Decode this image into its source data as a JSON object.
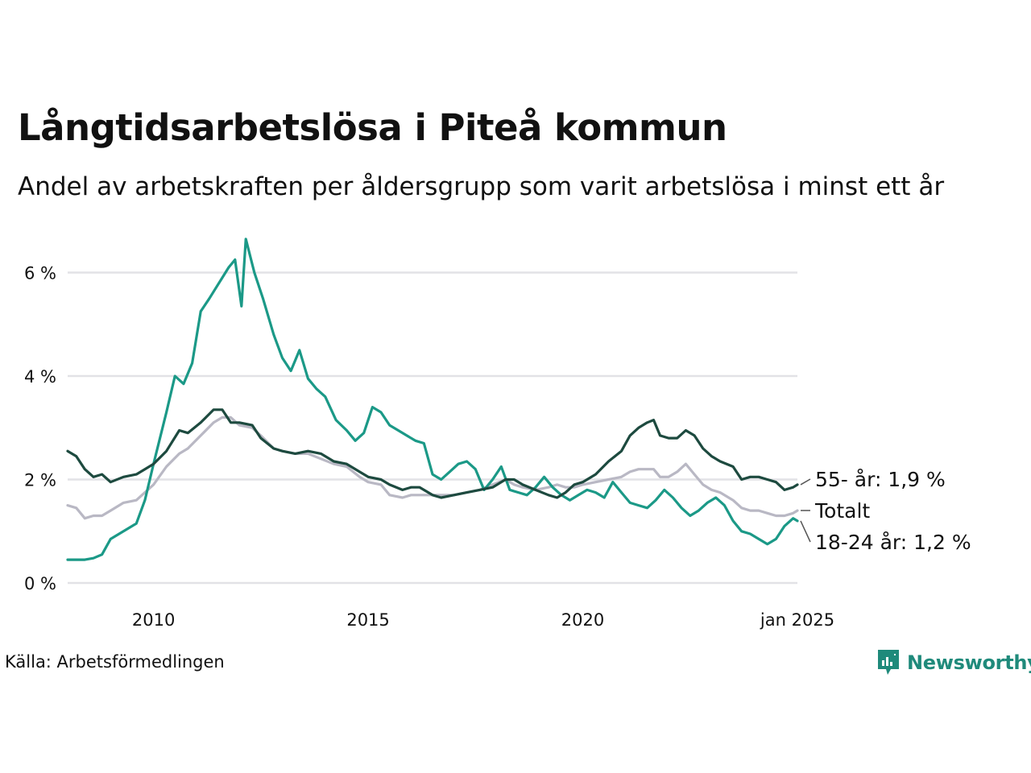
{
  "header": {
    "title": "Långtidsarbetslösa i Piteå kommun",
    "subtitle": "Andel av arbetskraften per åldersgrupp som varit arbetslösa i minst ett år"
  },
  "footer": {
    "source": "Källa: Arbetsförmedlingen",
    "brand": "Newsworthy"
  },
  "colors": {
    "series_55": "#1d4a3f",
    "series_total": "#b9b8c4",
    "series_18_24": "#1b9987",
    "grid": "#e2e2e6",
    "brand": "#1f8a7b"
  },
  "chart_data": {
    "type": "line",
    "title": "Långtidsarbetslösa i Piteå kommun",
    "xlabel": "",
    "ylabel": "",
    "xlim": [
      2008.0,
      2025.0
    ],
    "ylim": [
      0,
      6.6
    ],
    "grid": true,
    "x_ticks": [
      {
        "value": 2010,
        "label": "2010"
      },
      {
        "value": 2015,
        "label": "2015"
      },
      {
        "value": 2020,
        "label": "2020"
      },
      {
        "value": 2025,
        "label": "jan 2025"
      }
    ],
    "y_ticks": [
      {
        "value": 0,
        "label": "0 %"
      },
      {
        "value": 2,
        "label": "2 %"
      },
      {
        "value": 4,
        "label": "4 %"
      },
      {
        "value": 6,
        "label": "6 %"
      }
    ],
    "series": [
      {
        "name": "55- år",
        "end_label": "55- år: 1,9 %",
        "color": "#1d4a3f",
        "points": [
          [
            2008.0,
            2.55
          ],
          [
            2008.2,
            2.45
          ],
          [
            2008.4,
            2.2
          ],
          [
            2008.6,
            2.05
          ],
          [
            2008.8,
            2.1
          ],
          [
            2009.0,
            1.95
          ],
          [
            2009.3,
            2.05
          ],
          [
            2009.6,
            2.1
          ],
          [
            2009.8,
            2.2
          ],
          [
            2010.0,
            2.3
          ],
          [
            2010.3,
            2.55
          ],
          [
            2010.6,
            2.95
          ],
          [
            2010.8,
            2.9
          ],
          [
            2011.1,
            3.1
          ],
          [
            2011.4,
            3.35
          ],
          [
            2011.6,
            3.35
          ],
          [
            2011.8,
            3.1
          ],
          [
            2012.0,
            3.1
          ],
          [
            2012.3,
            3.05
          ],
          [
            2012.5,
            2.8
          ],
          [
            2012.8,
            2.6
          ],
          [
            2013.0,
            2.55
          ],
          [
            2013.3,
            2.5
          ],
          [
            2013.6,
            2.55
          ],
          [
            2013.9,
            2.5
          ],
          [
            2014.2,
            2.35
          ],
          [
            2014.5,
            2.3
          ],
          [
            2014.8,
            2.15
          ],
          [
            2015.0,
            2.05
          ],
          [
            2015.3,
            2.0
          ],
          [
            2015.5,
            1.9
          ],
          [
            2015.8,
            1.8
          ],
          [
            2016.0,
            1.85
          ],
          [
            2016.2,
            1.85
          ],
          [
            2016.5,
            1.7
          ],
          [
            2016.7,
            1.65
          ],
          [
            2017.0,
            1.7
          ],
          [
            2017.3,
            1.75
          ],
          [
            2017.6,
            1.8
          ],
          [
            2017.9,
            1.85
          ],
          [
            2018.2,
            2.0
          ],
          [
            2018.4,
            2.0
          ],
          [
            2018.6,
            1.9
          ],
          [
            2018.9,
            1.8
          ],
          [
            2019.2,
            1.7
          ],
          [
            2019.4,
            1.65
          ],
          [
            2019.6,
            1.75
          ],
          [
            2019.8,
            1.9
          ],
          [
            2020.0,
            1.95
          ],
          [
            2020.3,
            2.1
          ],
          [
            2020.6,
            2.35
          ],
          [
            2020.9,
            2.55
          ],
          [
            2021.1,
            2.85
          ],
          [
            2021.3,
            3.0
          ],
          [
            2021.5,
            3.1
          ],
          [
            2021.65,
            3.15
          ],
          [
            2021.8,
            2.85
          ],
          [
            2022.0,
            2.8
          ],
          [
            2022.2,
            2.8
          ],
          [
            2022.4,
            2.95
          ],
          [
            2022.6,
            2.85
          ],
          [
            2022.8,
            2.6
          ],
          [
            2023.0,
            2.45
          ],
          [
            2023.2,
            2.35
          ],
          [
            2023.5,
            2.25
          ],
          [
            2023.7,
            2.0
          ],
          [
            2023.9,
            2.05
          ],
          [
            2024.1,
            2.05
          ],
          [
            2024.3,
            2.0
          ],
          [
            2024.5,
            1.95
          ],
          [
            2024.7,
            1.8
          ],
          [
            2024.9,
            1.85
          ],
          [
            2025.0,
            1.9
          ]
        ]
      },
      {
        "name": "Totalt",
        "end_label": "Totalt",
        "color": "#b9b8c4",
        "points": [
          [
            2008.0,
            1.5
          ],
          [
            2008.2,
            1.45
          ],
          [
            2008.4,
            1.25
          ],
          [
            2008.6,
            1.3
          ],
          [
            2008.8,
            1.3
          ],
          [
            2009.0,
            1.4
          ],
          [
            2009.3,
            1.55
          ],
          [
            2009.6,
            1.6
          ],
          [
            2009.8,
            1.75
          ],
          [
            2010.0,
            1.9
          ],
          [
            2010.3,
            2.25
          ],
          [
            2010.6,
            2.5
          ],
          [
            2010.8,
            2.6
          ],
          [
            2011.1,
            2.85
          ],
          [
            2011.4,
            3.1
          ],
          [
            2011.6,
            3.2
          ],
          [
            2011.8,
            3.2
          ],
          [
            2012.0,
            3.05
          ],
          [
            2012.3,
            3.0
          ],
          [
            2012.5,
            2.85
          ],
          [
            2012.8,
            2.6
          ],
          [
            2013.0,
            2.55
          ],
          [
            2013.3,
            2.5
          ],
          [
            2013.6,
            2.5
          ],
          [
            2013.9,
            2.4
          ],
          [
            2014.2,
            2.3
          ],
          [
            2014.5,
            2.25
          ],
          [
            2014.8,
            2.05
          ],
          [
            2015.0,
            1.95
          ],
          [
            2015.3,
            1.9
          ],
          [
            2015.5,
            1.7
          ],
          [
            2015.8,
            1.65
          ],
          [
            2016.0,
            1.7
          ],
          [
            2016.2,
            1.7
          ],
          [
            2016.5,
            1.7
          ],
          [
            2016.7,
            1.7
          ],
          [
            2017.0,
            1.7
          ],
          [
            2017.3,
            1.75
          ],
          [
            2017.6,
            1.8
          ],
          [
            2017.9,
            1.9
          ],
          [
            2018.2,
            2.0
          ],
          [
            2018.4,
            1.9
          ],
          [
            2018.6,
            1.85
          ],
          [
            2018.9,
            1.8
          ],
          [
            2019.2,
            1.85
          ],
          [
            2019.4,
            1.9
          ],
          [
            2019.6,
            1.85
          ],
          [
            2019.8,
            1.85
          ],
          [
            2020.0,
            1.9
          ],
          [
            2020.3,
            1.95
          ],
          [
            2020.6,
            2.0
          ],
          [
            2020.9,
            2.05
          ],
          [
            2021.1,
            2.15
          ],
          [
            2021.3,
            2.2
          ],
          [
            2021.5,
            2.2
          ],
          [
            2021.65,
            2.2
          ],
          [
            2021.8,
            2.05
          ],
          [
            2022.0,
            2.05
          ],
          [
            2022.2,
            2.15
          ],
          [
            2022.4,
            2.3
          ],
          [
            2022.6,
            2.1
          ],
          [
            2022.8,
            1.9
          ],
          [
            2023.0,
            1.8
          ],
          [
            2023.2,
            1.75
          ],
          [
            2023.5,
            1.6
          ],
          [
            2023.7,
            1.45
          ],
          [
            2023.9,
            1.4
          ],
          [
            2024.1,
            1.4
          ],
          [
            2024.3,
            1.35
          ],
          [
            2024.5,
            1.3
          ],
          [
            2024.7,
            1.3
          ],
          [
            2024.9,
            1.35
          ],
          [
            2025.0,
            1.4
          ]
        ]
      },
      {
        "name": "18-24 år",
        "end_label": "18-24 år: 1,2 %",
        "color": "#1b9987",
        "points": [
          [
            2008.0,
            0.45
          ],
          [
            2008.2,
            0.45
          ],
          [
            2008.4,
            0.45
          ],
          [
            2008.6,
            0.48
          ],
          [
            2008.8,
            0.55
          ],
          [
            2009.0,
            0.85
          ],
          [
            2009.3,
            1.0
          ],
          [
            2009.6,
            1.15
          ],
          [
            2009.8,
            1.6
          ],
          [
            2010.0,
            2.3
          ],
          [
            2010.3,
            3.3
          ],
          [
            2010.5,
            4.0
          ],
          [
            2010.7,
            3.85
          ],
          [
            2010.9,
            4.25
          ],
          [
            2011.1,
            5.25
          ],
          [
            2011.3,
            5.5
          ],
          [
            2011.45,
            5.7
          ],
          [
            2011.6,
            5.9
          ],
          [
            2011.75,
            6.1
          ],
          [
            2011.9,
            6.25
          ],
          [
            2012.05,
            5.35
          ],
          [
            2012.15,
            6.65
          ],
          [
            2012.35,
            6.0
          ],
          [
            2012.55,
            5.5
          ],
          [
            2012.8,
            4.8
          ],
          [
            2013.0,
            4.35
          ],
          [
            2013.2,
            4.1
          ],
          [
            2013.4,
            4.5
          ],
          [
            2013.6,
            3.95
          ],
          [
            2013.8,
            3.75
          ],
          [
            2014.0,
            3.6
          ],
          [
            2014.25,
            3.15
          ],
          [
            2014.5,
            2.95
          ],
          [
            2014.7,
            2.75
          ],
          [
            2014.9,
            2.9
          ],
          [
            2015.1,
            3.4
          ],
          [
            2015.3,
            3.3
          ],
          [
            2015.5,
            3.05
          ],
          [
            2015.7,
            2.95
          ],
          [
            2015.9,
            2.85
          ],
          [
            2016.1,
            2.75
          ],
          [
            2016.3,
            2.7
          ],
          [
            2016.5,
            2.1
          ],
          [
            2016.7,
            2.0
          ],
          [
            2016.9,
            2.15
          ],
          [
            2017.1,
            2.3
          ],
          [
            2017.3,
            2.35
          ],
          [
            2017.5,
            2.2
          ],
          [
            2017.7,
            1.8
          ],
          [
            2017.9,
            2.0
          ],
          [
            2018.1,
            2.25
          ],
          [
            2018.3,
            1.8
          ],
          [
            2018.5,
            1.75
          ],
          [
            2018.7,
            1.7
          ],
          [
            2018.9,
            1.85
          ],
          [
            2019.1,
            2.05
          ],
          [
            2019.3,
            1.85
          ],
          [
            2019.5,
            1.7
          ],
          [
            2019.7,
            1.6
          ],
          [
            2019.9,
            1.7
          ],
          [
            2020.1,
            1.8
          ],
          [
            2020.3,
            1.75
          ],
          [
            2020.5,
            1.65
          ],
          [
            2020.7,
            1.95
          ],
          [
            2020.9,
            1.75
          ],
          [
            2021.1,
            1.55
          ],
          [
            2021.3,
            1.5
          ],
          [
            2021.5,
            1.45
          ],
          [
            2021.7,
            1.6
          ],
          [
            2021.9,
            1.8
          ],
          [
            2022.1,
            1.65
          ],
          [
            2022.3,
            1.45
          ],
          [
            2022.5,
            1.3
          ],
          [
            2022.7,
            1.4
          ],
          [
            2022.9,
            1.55
          ],
          [
            2023.1,
            1.65
          ],
          [
            2023.3,
            1.5
          ],
          [
            2023.5,
            1.2
          ],
          [
            2023.7,
            1.0
          ],
          [
            2023.9,
            0.95
          ],
          [
            2024.1,
            0.85
          ],
          [
            2024.3,
            0.75
          ],
          [
            2024.5,
            0.85
          ],
          [
            2024.7,
            1.1
          ],
          [
            2024.9,
            1.25
          ],
          [
            2025.0,
            1.2
          ]
        ]
      }
    ]
  }
}
